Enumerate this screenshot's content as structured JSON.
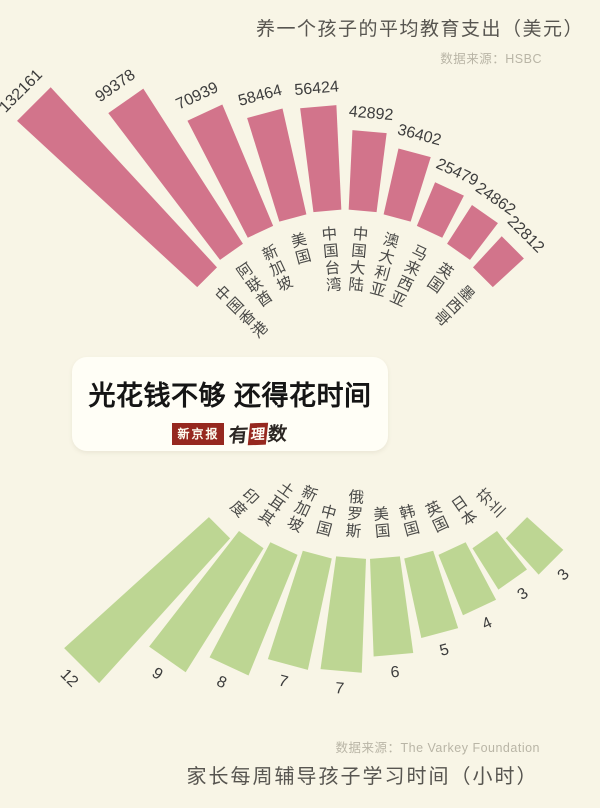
{
  "colors": {
    "background": "#f8f5e6",
    "pink_bar": "#d2748b",
    "green_bar": "#bdd693",
    "title_text": "#575550",
    "source_text": "#b9b5a6",
    "number_text": "#3d3d3d",
    "logo_red": "#96281f"
  },
  "banner": {
    "headline": "光花钱不够 还得花时间",
    "logo_left": "新京报",
    "logo_right_chars": [
      "有",
      "理",
      "数"
    ]
  },
  "chart_data": [
    {
      "type": "bar",
      "variant": "radial-fan",
      "orientation": "fan-up",
      "title": "养一个孩子的平均教育支出（美元）",
      "source": "数据来源：HSBC",
      "unit": "美元",
      "categories": [
        "中国香港",
        "阿联酋",
        "新加坡",
        "美国",
        "中国台湾",
        "中国大陆",
        "澳大利亚",
        "马来西亚",
        "英国",
        "墨西哥"
      ],
      "values": [
        132161,
        99378,
        70939,
        58464,
        56424,
        42892,
        36402,
        25479,
        24862,
        22812
      ],
      "value_range": [
        0,
        132161
      ],
      "bar_color": "#d2748b",
      "legend": "none",
      "grid": "off"
    },
    {
      "type": "bar",
      "variant": "radial-fan",
      "orientation": "fan-down",
      "title": "家长每周辅导孩子学习时间（小时）",
      "source": "数据来源：The Varkey Foundation",
      "unit": "小时",
      "categories": [
        "印度",
        "土耳其",
        "新加坡",
        "中国",
        "俄罗斯",
        "美国",
        "韩国",
        "英国",
        "日本",
        "芬兰"
      ],
      "values": [
        12,
        9,
        8,
        7,
        7,
        6,
        5,
        4,
        3,
        3
      ],
      "value_range": [
        0,
        12
      ],
      "bar_color": "#bdd693",
      "legend": "none",
      "grid": "off"
    }
  ]
}
